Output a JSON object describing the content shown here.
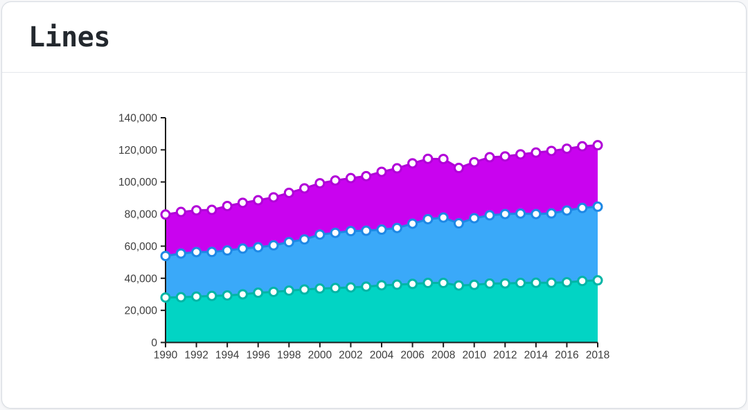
{
  "card": {
    "title": "Lines"
  },
  "chart_data": {
    "type": "area",
    "title": "Lines",
    "subtitle": "",
    "xlabel": "",
    "ylabel": "",
    "legend": "none",
    "grid": false,
    "stacked_appearance": true,
    "marker": "white-circle",
    "ylim": [
      0,
      140000
    ],
    "axis_color": "#1c1c1c",
    "tick_label_color": "#3d3d3d",
    "years": [
      1990,
      1991,
      1992,
      1993,
      1994,
      1995,
      1996,
      1997,
      1998,
      1999,
      2000,
      2001,
      2002,
      2003,
      2004,
      2005,
      2006,
      2007,
      2008,
      2009,
      2010,
      2011,
      2012,
      2013,
      2014,
      2015,
      2016,
      2017,
      2018
    ],
    "x_tick_labels": [
      "1990",
      "1992",
      "1994",
      "1996",
      "1998",
      "2000",
      "2002",
      "2004",
      "2006",
      "2008",
      "2010",
      "2012",
      "2014",
      "2016",
      "2018"
    ],
    "y_ticks": [
      {
        "value": 0,
        "label": "0"
      },
      {
        "value": 20000,
        "label": "20,000"
      },
      {
        "value": 40000,
        "label": "40,000"
      },
      {
        "value": 60000,
        "label": "60,000"
      },
      {
        "value": 80000,
        "label": "80,000"
      },
      {
        "value": 100000,
        "label": "100,000"
      },
      {
        "value": 120000,
        "label": "120,000"
      },
      {
        "value": 140000,
        "label": "140,000"
      }
    ],
    "series": [
      {
        "name": "top-magenta",
        "fill_color": "#c903ef",
        "line_color": "#b100d8",
        "values": [
          79700,
          81300,
          82300,
          82600,
          85000,
          87000,
          88600,
          90400,
          93200,
          96000,
          99200,
          100900,
          102400,
          103600,
          106300,
          108500,
          111600,
          114400,
          114300,
          108700,
          112300,
          115400,
          115900,
          117200,
          118300,
          119300,
          120700,
          122200,
          122900
        ]
      },
      {
        "name": "middle-blue",
        "fill_color": "#3aa9f9",
        "line_color": "#1e88e5",
        "values": [
          53900,
          55400,
          56300,
          56400,
          57300,
          58500,
          59300,
          60500,
          62500,
          64200,
          67200,
          68300,
          69400,
          69600,
          70300,
          71300,
          74000,
          76800,
          77800,
          74200,
          77400,
          79200,
          80000,
          80300,
          80000,
          80400,
          82200,
          83800,
          84600
        ]
      },
      {
        "name": "bottom-teal",
        "fill_color": "#02d4c4",
        "line_color": "#00b5a6",
        "values": [
          28000,
          28200,
          28600,
          29000,
          29300,
          30000,
          31000,
          31500,
          32300,
          33000,
          33600,
          33900,
          34300,
          34800,
          35600,
          36000,
          36500,
          37100,
          37100,
          35500,
          35900,
          36700,
          36800,
          37100,
          37200,
          37200,
          37500,
          38300,
          38700
        ]
      }
    ]
  }
}
